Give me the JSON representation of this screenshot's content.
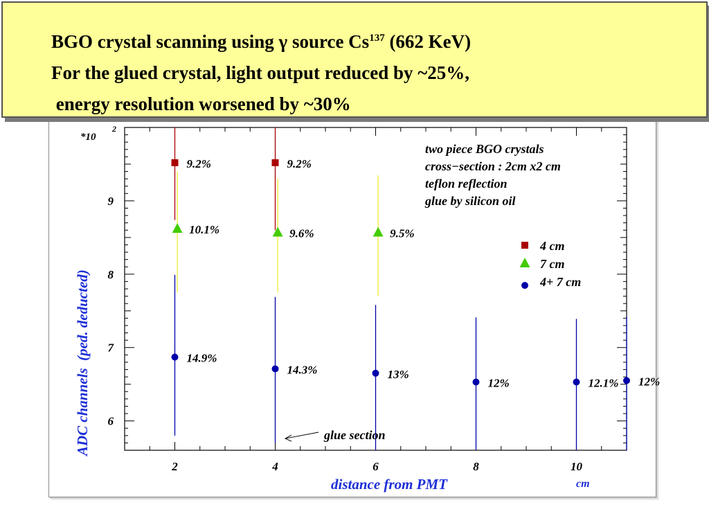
{
  "banner": {
    "line1_prefix": "BGO crystal scanning using γ source Cs",
    "line1_sup": "137",
    "line1_suffix": " (662 KeV)",
    "line2": "For the glued crystal, light output reduced by ~25%,",
    "line3": " energy resolution worsened by ~30%"
  },
  "chart_data": {
    "type": "scatter",
    "title": "",
    "xlabel": "distance from PMT",
    "xunit": "cm",
    "ylabel": "ADC channels  (ped. deducted)",
    "yscale_label": "*10",
    "yscale_exponent": "2",
    "xlim": [
      1,
      11
    ],
    "ylim": [
      5.6,
      10.0
    ],
    "xticks": [
      2,
      4,
      6,
      8,
      10
    ],
    "yticks": [
      6,
      7,
      8,
      9
    ],
    "grid": false,
    "legend_position": "right",
    "info_lines": [
      "two piece BGO crystals",
      "cross−section : 2cm x2 cm",
      "teflon reflection",
      "glue by silicon oil"
    ],
    "series": [
      {
        "name": "4 cm",
        "marker": "square",
        "color": "#aa0000",
        "x": [
          2,
          4
        ],
        "y": [
          9.52,
          9.52
        ],
        "err_low": [
          0.78,
          0.92
        ],
        "err_high": [
          0.48,
          0.48
        ],
        "labels": [
          "9.2%",
          "9.2%"
        ]
      },
      {
        "name": "7 cm",
        "marker": "triangle",
        "color": "#44cc00",
        "line_color": "#eeee33",
        "x": [
          2.05,
          4.05,
          6.05
        ],
        "y": [
          8.62,
          8.57,
          8.57
        ],
        "err_low": [
          0.87,
          0.82,
          0.87
        ],
        "err_high": [
          0.78,
          0.73,
          0.78
        ],
        "labels": [
          "10.1%",
          "9.6%",
          "9.5%"
        ]
      },
      {
        "name": "4+ 7 cm",
        "marker": "circle",
        "color": "#0000aa",
        "x": [
          2,
          4,
          6,
          8,
          10,
          11
        ],
        "y": [
          6.87,
          6.71,
          6.65,
          6.53,
          6.53,
          6.55
        ],
        "err_low": [
          1.07,
          1.01,
          1.05,
          0.93,
          0.93,
          0.95
        ],
        "err_high": [
          1.12,
          0.98,
          0.93,
          0.88,
          0.86,
          0.87
        ],
        "labels": [
          "14.9%",
          "14.3%",
          "13%",
          "12%",
          "12.1%",
          "12%"
        ]
      }
    ],
    "annotations": [
      {
        "text": "glue section",
        "points_to_x": 4.2,
        "points_to_y": 5.76
      }
    ]
  }
}
